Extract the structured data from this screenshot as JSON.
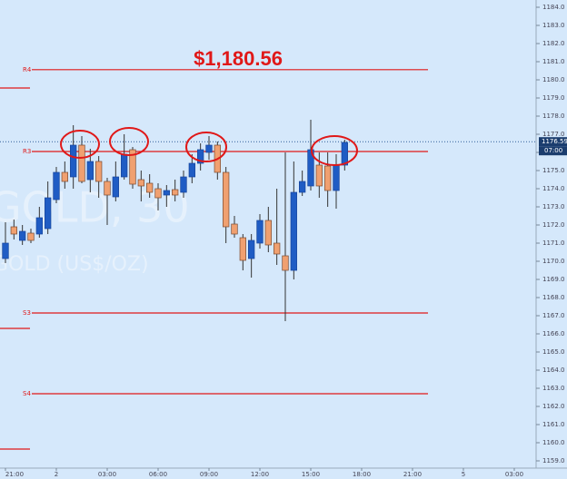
{
  "chart_data": {
    "type": "candlestick",
    "annotation": "$1,180.56",
    "watermark": "GOLD, 30",
    "watermark_sub": "GOLD (US$/OZ)",
    "categories": [
      "21:00",
      null,
      null,
      null,
      null,
      null,
      "2",
      null,
      null,
      null,
      null,
      null,
      "03:00",
      null,
      null,
      null,
      null,
      null,
      "06:00",
      null,
      null,
      null,
      null,
      null,
      "09:00",
      null,
      null,
      null,
      null,
      null,
      "12:00",
      null,
      null,
      null,
      null,
      null,
      "15:00",
      null,
      null,
      null,
      null,
      null,
      "18:00",
      null,
      null,
      null,
      null,
      null,
      "21:00",
      null,
      null,
      null,
      null,
      null,
      "5",
      null,
      null,
      null,
      null,
      null,
      "03:00"
    ],
    "open": [
      1170.15,
      1171.9,
      1171.15,
      1171.55,
      1171.5,
      1171.8,
      1173.4,
      1174.9,
      1174.65,
      1176.4,
      1174.5,
      1175.5,
      1174.4,
      1173.55,
      1174.65,
      1176.15,
      1174.5,
      1174.3,
      1174.0,
      1173.65,
      1173.95,
      1173.8,
      1174.65,
      1175.4,
      1176.0,
      1176.4,
      1174.9,
      1172.05,
      1171.3,
      1170.15,
      1171.0,
      1172.25,
      1171.0,
      1170.3,
      1169.5,
      1173.8,
      1174.15,
      1175.3,
      1175.25,
      1173.9,
      1175.3,
      null,
      null,
      null,
      null,
      null,
      null,
      null,
      null,
      null,
      null,
      null,
      null,
      null,
      null,
      null,
      null,
      null,
      null,
      null,
      null
    ],
    "high": [
      1172.15,
      1172.3,
      1172.0,
      1171.8,
      1173.0,
      1174.4,
      1175.2,
      1175.5,
      1177.5,
      1176.9,
      1176.2,
      1175.8,
      1174.6,
      1175.5,
      1177.0,
      1176.3,
      1175.0,
      1174.8,
      1174.3,
      1174.2,
      1174.5,
      1175.0,
      1175.9,
      1176.5,
      1176.9,
      1176.6,
      1175.2,
      1172.5,
      1171.5,
      1171.5,
      1172.6,
      1173.0,
      1174.0,
      1176.0,
      1175.5,
      1175.0,
      1177.8,
      1176.0,
      1176.0,
      1175.9,
      1176.7,
      null,
      null,
      null,
      null,
      null,
      null,
      null,
      null,
      null,
      null,
      null,
      null,
      null,
      null,
      null,
      null,
      null,
      null,
      null,
      null
    ],
    "low": [
      1169.9,
      1171.2,
      1170.9,
      1171.0,
      1171.3,
      1171.5,
      1173.2,
      1174.0,
      1174.0,
      1174.3,
      1173.8,
      1173.5,
      1172.0,
      1173.3,
      1174.5,
      1174.0,
      1173.3,
      1173.5,
      1172.8,
      1173.0,
      1173.3,
      1173.5,
      1174.3,
      1175.0,
      1175.6,
      1174.5,
      1171.0,
      1171.3,
      1169.5,
      1169.1,
      1170.7,
      1170.5,
      1169.8,
      1166.7,
      1169.0,
      1173.6,
      1173.9,
      1173.5,
      1173.0,
      1172.9,
      1175.0,
      null,
      null,
      null,
      null,
      null,
      null,
      null,
      null,
      null,
      null,
      null,
      null,
      null,
      null,
      null,
      null,
      null,
      null,
      null,
      null
    ],
    "close": [
      1171.0,
      1171.5,
      1171.65,
      1171.15,
      1172.4,
      1173.5,
      1174.9,
      1174.4,
      1176.4,
      1174.4,
      1175.5,
      1174.4,
      1173.65,
      1174.65,
      1175.9,
      1174.25,
      1174.15,
      1173.8,
      1173.5,
      1173.9,
      1173.65,
      1174.65,
      1175.4,
      1176.15,
      1176.4,
      1174.9,
      1171.9,
      1171.5,
      1170.05,
      1171.15,
      1172.25,
      1170.9,
      1170.4,
      1169.5,
      1173.8,
      1174.4,
      1176.15,
      1174.15,
      1173.9,
      1175.3,
      1176.55,
      null,
      null,
      null,
      null,
      null,
      null,
      null,
      null,
      null,
      null,
      null,
      null,
      null,
      null,
      null,
      null,
      null,
      null,
      null,
      null
    ],
    "up_color": "#1f5cc4",
    "down_color": "#f0a070",
    "levels": [
      {
        "name": "R4",
        "value": 1180.56
      },
      {
        "name": "R3",
        "value": 1176.05
      },
      {
        "name": "S3",
        "value": 1167.15
      },
      {
        "name": "S4",
        "value": 1162.7
      }
    ],
    "side_levels": [
      1179.55,
      1166.3,
      1159.65
    ],
    "level_color": "#e01818",
    "last_price": 1176.59,
    "countdown": "07:00",
    "ylim": [
      1158.6,
      1184.4
    ],
    "yticks": [
      {
        "value": 1159,
        "label": "1159.0"
      },
      {
        "value": 1160,
        "label": "1160.0"
      },
      {
        "value": 1161,
        "label": "1161.0"
      },
      {
        "value": 1162,
        "label": "1162.0"
      },
      {
        "value": 1163,
        "label": "1163.0"
      },
      {
        "value": 1164,
        "label": "1164.0"
      },
      {
        "value": 1165,
        "label": "1165.0"
      },
      {
        "value": 1166,
        "label": "1166.0"
      },
      {
        "value": 1167,
        "label": "1167.0"
      },
      {
        "value": 1168,
        "label": "1168.0"
      },
      {
        "value": 1169,
        "label": "1169.0"
      },
      {
        "value": 1170,
        "label": "1170.0"
      },
      {
        "value": 1171,
        "label": "1171.0"
      },
      {
        "value": 1172,
        "label": "1172.0"
      },
      {
        "value": 1173,
        "label": "1173.0"
      },
      {
        "value": 1174,
        "label": "1174.0"
      },
      {
        "value": 1175,
        "label": "1175.0"
      },
      {
        "value": 1176,
        "label": "1176.0"
      },
      {
        "value": 1177,
        "label": "1177.0"
      },
      {
        "value": 1178,
        "label": "1178.0"
      },
      {
        "value": 1179,
        "label": "1179.0"
      },
      {
        "value": 1180,
        "label": "1180.0"
      },
      {
        "value": 1181,
        "label": "1181.0"
      },
      {
        "value": 1182,
        "label": "1182.0"
      },
      {
        "value": 1183,
        "label": "1183.0"
      },
      {
        "value": 1184,
        "label": "1184.0"
      }
    ]
  }
}
